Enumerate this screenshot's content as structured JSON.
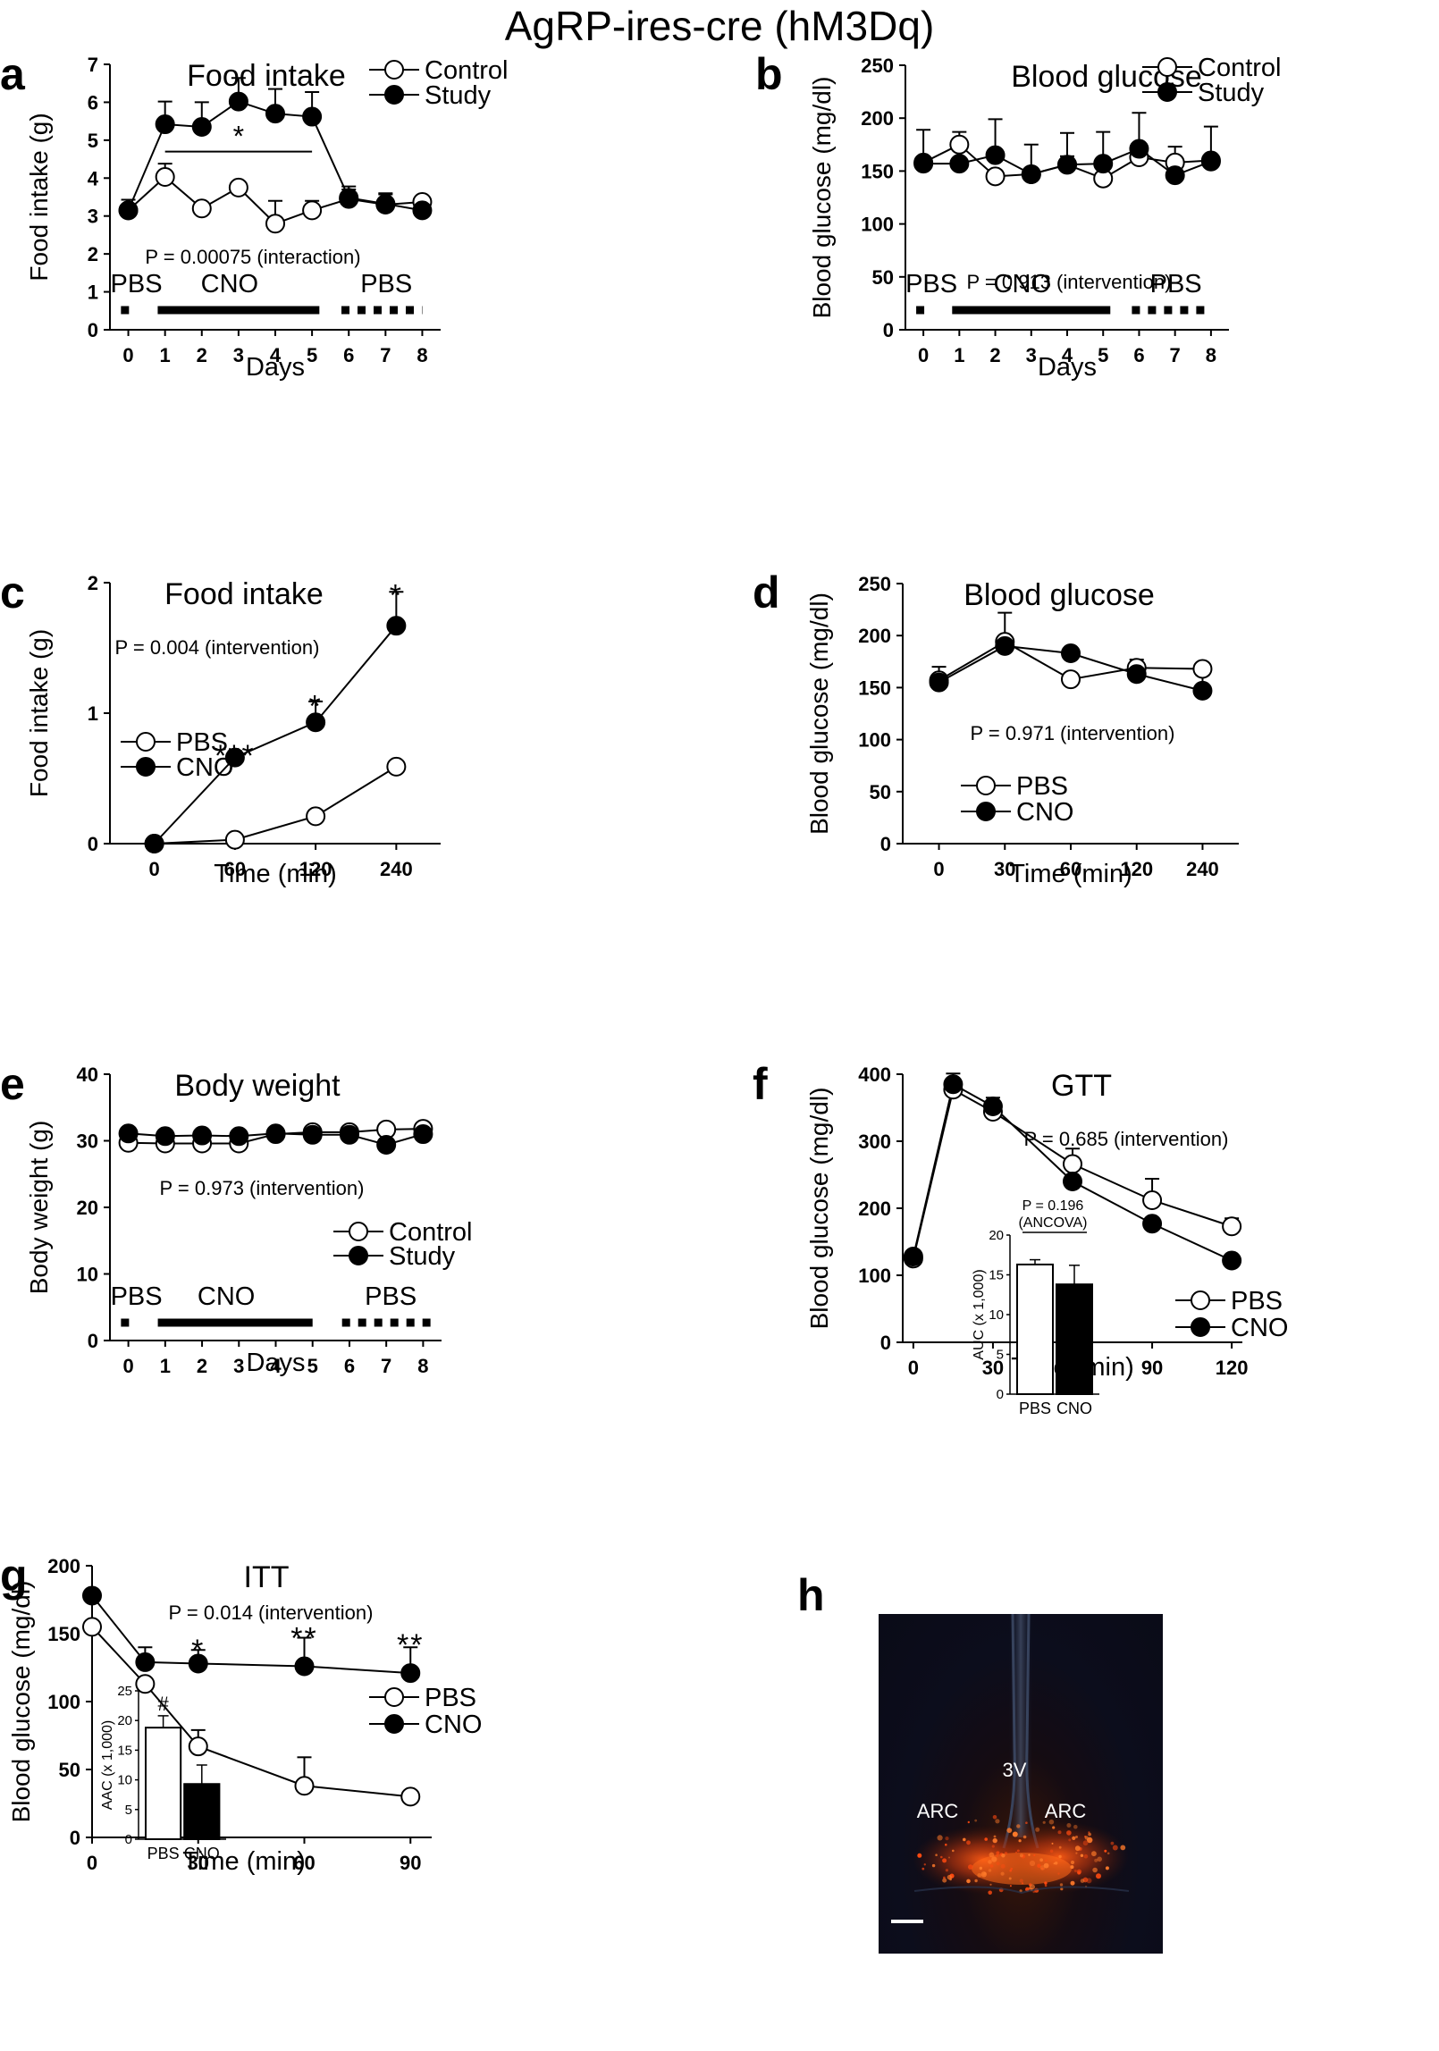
{
  "figure": {
    "title": "AgRP-ires-cre (hM3Dq)"
  },
  "colors": {
    "open_marker": "#ffffff",
    "filled_marker": "#000000",
    "line": "#000000"
  },
  "panels": {
    "h": {
      "letter": "h",
      "labels": [
        "3V",
        "ARC",
        "ARC"
      ]
    }
  },
  "chart_data": [
    {
      "id": "a",
      "letter": "a",
      "type": "line",
      "title": "Food intake",
      "xlabel": "Days",
      "ylabel": "Food intake (g)",
      "x": [
        0,
        1,
        2,
        3,
        4,
        5,
        6,
        7,
        8
      ],
      "xlim": [
        -0.5,
        8.5
      ],
      "yticks": [
        0,
        1,
        2,
        3,
        4,
        5,
        6,
        7
      ],
      "ylim": [
        0,
        7
      ],
      "series": [
        {
          "name": "Control",
          "marker": "open",
          "values": [
            3.15,
            4.03,
            3.2,
            3.75,
            2.8,
            3.15,
            3.45,
            3.3,
            3.37
          ],
          "err": [
            0.15,
            0.35,
            0,
            0.15,
            0.6,
            0.25,
            0.25,
            0.3,
            0.05
          ]
        },
        {
          "name": "Study",
          "marker": "filled",
          "values": [
            3.15,
            5.42,
            5.35,
            6.02,
            5.7,
            5.62,
            3.48,
            3.32,
            3.15
          ],
          "err": [
            0.28,
            0.6,
            0.65,
            0.62,
            0.65,
            0.65,
            0.3,
            0.25,
            0
          ]
        }
      ],
      "annotations": [
        {
          "text": "P = 0.00075  (interaction)"
        },
        {
          "text": "*"
        }
      ],
      "bracket": {
        "x1": 1,
        "x2": 5,
        "y": 4.7
      },
      "treatment_labels": [
        "PBS",
        "CNO",
        "PBS"
      ],
      "treatments": [
        {
          "from": -0.2,
          "to": 0.2,
          "style": "dashed"
        },
        {
          "from": 0.8,
          "to": 5.2,
          "style": "solid"
        },
        {
          "from": 5.8,
          "to": 8.0,
          "style": "dashed"
        }
      ],
      "legend": "top-right"
    },
    {
      "id": "b",
      "letter": "b",
      "type": "line",
      "title": "Blood glucose",
      "xlabel": "Days",
      "ylabel": "Blood glucose (mg/dl)",
      "x": [
        0,
        1,
        2,
        3,
        4,
        5,
        6,
        7,
        8
      ],
      "xlim": [
        -0.5,
        8.5
      ],
      "yticks": [
        0,
        50,
        100,
        150,
        200,
        250
      ],
      "ylim": [
        0,
        250
      ],
      "series": [
        {
          "name": "Control",
          "marker": "open",
          "values": [
            158,
            175,
            145,
            147,
            156,
            143,
            163,
            158,
            160
          ],
          "err": [
            0,
            12,
            0,
            0,
            8,
            0,
            0,
            15,
            0
          ]
        },
        {
          "name": "Study",
          "marker": "filled",
          "values": [
            157,
            157,
            165,
            147,
            156,
            157,
            171,
            146,
            159
          ],
          "err": [
            32,
            0,
            34,
            28,
            30,
            30,
            34,
            0,
            33
          ]
        }
      ],
      "annotations": [
        {
          "text": "P = 0.913  (intervention)"
        }
      ],
      "treatment_labels": [
        "PBS",
        "CNO",
        "PBS"
      ],
      "treatments": [
        {
          "from": -0.2,
          "to": 0.2,
          "style": "dashed"
        },
        {
          "from": 0.8,
          "to": 5.2,
          "style": "solid"
        },
        {
          "from": 5.8,
          "to": 8.0,
          "style": "dashed"
        }
      ],
      "legend": "top-right"
    },
    {
      "id": "c",
      "letter": "c",
      "type": "line",
      "title": "Food intake",
      "xlabel": "Time (min)",
      "ylabel": "Food intake (g)",
      "x": [
        0,
        1,
        2,
        3
      ],
      "xticklabels": [
        "0",
        "60",
        "120",
        "240"
      ],
      "xlim": [
        -0.55,
        3.55
      ],
      "yticks": [
        0,
        1,
        2
      ],
      "ylim": [
        0,
        2
      ],
      "series": [
        {
          "name": "PBS",
          "marker": "open",
          "values": [
            0,
            0.03,
            0.21,
            0.59
          ],
          "err": [
            0,
            0,
            0,
            0
          ]
        },
        {
          "name": "CNO",
          "marker": "filled",
          "values": [
            0,
            0.66,
            0.93,
            1.67
          ],
          "err": [
            0,
            0.05,
            0.16,
            0.26
          ]
        }
      ],
      "annotations": [
        {
          "text": "P = 0.004  (intervention)"
        }
      ],
      "stars": [
        {
          "x": 1,
          "y": 0.72,
          "text": "***"
        },
        {
          "x": 2,
          "y": 1.1,
          "text": "*"
        },
        {
          "x": 3,
          "y": 1.95,
          "text": "*"
        }
      ],
      "legend": "middle-left"
    },
    {
      "id": "d",
      "letter": "d",
      "type": "line",
      "title": "Blood glucose",
      "xlabel": "Time (min)",
      "ylabel": "Blood glucose (mg/dl)",
      "x": [
        0,
        1,
        2,
        3,
        4
      ],
      "xticklabels": [
        "0",
        "30",
        "60",
        "120",
        "240"
      ],
      "xlim": [
        -0.55,
        4.55
      ],
      "yticks": [
        0,
        50,
        100,
        150,
        200,
        250
      ],
      "ylim": [
        0,
        250
      ],
      "series": [
        {
          "name": "PBS",
          "marker": "open",
          "values": [
            157,
            194,
            158,
            169,
            168
          ],
          "err": [
            0,
            0,
            0,
            0,
            0
          ]
        },
        {
          "name": "CNO",
          "marker": "filled",
          "values": [
            155,
            190,
            183,
            163,
            147
          ],
          "err": [
            15,
            32,
            0,
            14,
            15
          ]
        }
      ],
      "annotations": [
        {
          "text": "P = 0.971  (intervention)"
        }
      ],
      "legend": "bottom-left"
    },
    {
      "id": "e",
      "letter": "e",
      "type": "line",
      "title": "Body weight",
      "xlabel": "Days",
      "ylabel": "Body weight (g)",
      "x": [
        0,
        1,
        2,
        3,
        4,
        5,
        6,
        7,
        8
      ],
      "xlim": [
        -0.5,
        8.5
      ],
      "yticks": [
        0,
        10,
        20,
        30,
        40
      ],
      "ylim": [
        0,
        40
      ],
      "series": [
        {
          "name": "Control",
          "marker": "open",
          "values": [
            29.7,
            29.6,
            29.6,
            29.6,
            31.0,
            31.3,
            31.3,
            31.7,
            31.8
          ],
          "err": [
            0,
            0,
            0,
            0,
            0,
            0,
            0,
            0,
            0
          ]
        },
        {
          "name": "Study",
          "marker": "filled",
          "values": [
            31.1,
            30.7,
            30.8,
            30.7,
            31.1,
            30.9,
            30.9,
            29.4,
            31.0
          ],
          "err": [
            0,
            0,
            0,
            0,
            0,
            0,
            0,
            0,
            0
          ]
        }
      ],
      "annotations": [
        {
          "text": "P = 0.973  (intervention)"
        }
      ],
      "treatment_labels": [
        "PBS",
        "CNO",
        "PBS"
      ],
      "treatments": [
        {
          "from": -0.2,
          "to": 0.2,
          "style": "dashed"
        },
        {
          "from": 0.8,
          "to": 5.0,
          "style": "solid"
        },
        {
          "from": 5.8,
          "to": 8.2,
          "style": "dashed"
        }
      ],
      "legend": "middle-right"
    },
    {
      "id": "f",
      "letter": "f",
      "type": "line",
      "title": "GTT",
      "xlabel": "Time (min)",
      "ylabel": "Blood glucose (mg/dl)",
      "x": [
        0,
        15,
        30,
        60,
        90,
        120
      ],
      "xticks": [
        0,
        30,
        60,
        90,
        120
      ],
      "xlim": [
        -4,
        124
      ],
      "yticks": [
        0,
        100,
        200,
        300,
        400
      ],
      "ylim": [
        0,
        400
      ],
      "series": [
        {
          "name": "PBS",
          "marker": "open",
          "values": [
            125,
            377,
            344,
            266,
            212,
            173
          ],
          "err": [
            0,
            0,
            0,
            23,
            32,
            12
          ]
        },
        {
          "name": "CNO",
          "marker": "filled",
          "values": [
            128,
            385,
            352,
            240,
            177,
            122
          ],
          "err": [
            0,
            16,
            13,
            0,
            0,
            0
          ]
        }
      ],
      "annotations": [
        {
          "text": "P = 0.685  (intervention)"
        }
      ],
      "legend": "bottom-right",
      "inset": {
        "type": "bar",
        "ylabel": "AUC (x 1,000)",
        "categories": [
          "PBS",
          "CNO"
        ],
        "values": [
          16.3,
          13.8
        ],
        "err": [
          0.6,
          2.4
        ],
        "fills": [
          "#ffffff",
          "#000000"
        ],
        "yticks": [
          0,
          5,
          10,
          15,
          20
        ],
        "ylim": [
          0,
          20
        ],
        "annotations": [
          "P = 0.196",
          "(ANCOVA)"
        ]
      }
    },
    {
      "id": "g",
      "letter": "g",
      "type": "line",
      "title": "ITT",
      "xlabel": "Time (min)",
      "ylabel": "Blood glucose (mg/dl)",
      "x": [
        0,
        15,
        30,
        60,
        90
      ],
      "xticks": [
        0,
        30,
        60,
        90
      ],
      "xlim": [
        0,
        96
      ],
      "yticks": [
        0,
        50,
        100,
        150,
        200
      ],
      "ylim": [
        0,
        200
      ],
      "series": [
        {
          "name": "PBS",
          "marker": "open",
          "values": [
            155,
            113,
            67,
            38,
            30
          ],
          "err": [
            0,
            0,
            12,
            21,
            0
          ]
        },
        {
          "name": "CNO",
          "marker": "filled",
          "values": [
            178,
            129,
            128,
            126,
            121
          ],
          "err": [
            0,
            11,
            10,
            21,
            19
          ]
        }
      ],
      "annotations": [
        {
          "text": "P = 0.014  (intervention)"
        }
      ],
      "stars": [
        {
          "x": 30,
          "y": 142,
          "text": "*"
        },
        {
          "x": 60,
          "y": 151,
          "text": "**"
        },
        {
          "x": 90,
          "y": 146,
          "text": "**"
        }
      ],
      "legend": "middle-right",
      "inset": {
        "type": "bar",
        "ylabel": "AAC (x 1,000)",
        "categories": [
          "PBS",
          "CNO"
        ],
        "values": [
          18.8,
          9.3
        ],
        "err": [
          2.0,
          3.2
        ],
        "fills": [
          "#ffffff",
          "#000000"
        ],
        "yticks": [
          0,
          5,
          10,
          15,
          20,
          25
        ],
        "ylim": [
          0,
          25
        ],
        "annotations": [
          "#"
        ]
      }
    }
  ]
}
